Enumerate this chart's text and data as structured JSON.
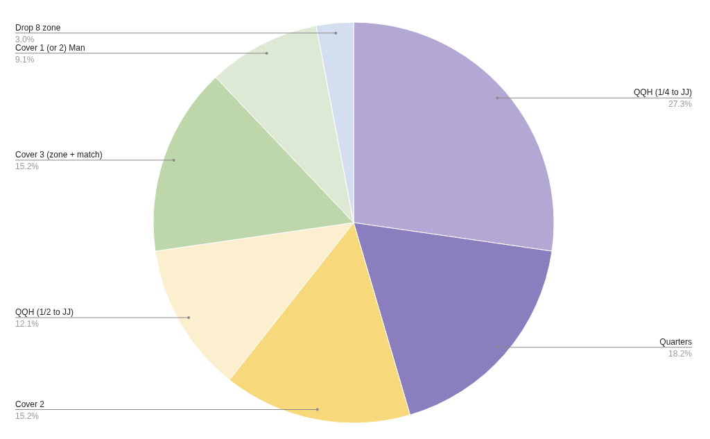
{
  "chart_data": {
    "type": "pie",
    "categories": [
      "QQH (1/4 to JJ)",
      "Quarters",
      "Cover 2",
      "QQH (1/2 to JJ)",
      "Cover 3 (zone + match)",
      "Cover 1 (or 2) Man",
      "Drop 8 zone"
    ],
    "values": [
      27.3,
      18.2,
      15.2,
      12.1,
      15.2,
      9.1,
      3.0
    ],
    "value_labels": [
      "27.3%",
      "18.2%",
      "15.2%",
      "12.1%",
      "15.2%",
      "9.1%",
      "3.0%"
    ],
    "colors": [
      "#b3a7d3",
      "#8a7ebe",
      "#f7d87a",
      "#fbefcf",
      "#bdd7ab",
      "#dde9d5",
      "#d3dff0"
    ]
  }
}
